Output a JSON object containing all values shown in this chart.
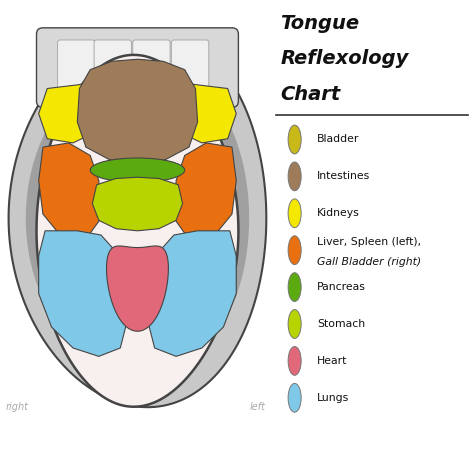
{
  "title_line1": "Tongue",
  "title_line2": "Reflexology",
  "title_line3": "Chart",
  "background_color": "#ffffff",
  "legend_items": [
    {
      "label": "Bladder",
      "color": "#c8b818"
    },
    {
      "label": "Intestines",
      "color": "#9e7c5a"
    },
    {
      "label": "Kidneys",
      "color": "#f5e800"
    },
    {
      "label": "Liver, Spleen (left),\nGall Bladder (right)",
      "color": "#e87010"
    },
    {
      "label": "Pancreas",
      "color": "#5aaa10"
    },
    {
      "label": "Stomach",
      "color": "#b8d400"
    },
    {
      "label": "Heart",
      "color": "#e06878"
    },
    {
      "label": "Lungs",
      "color": "#80c8e8"
    }
  ],
  "region_colors": {
    "bladder": "#c8b818",
    "intestines": "#9e7c5a",
    "kidneys": "#f5e800",
    "liver_spleen": "#e87010",
    "pancreas": "#5aaa10",
    "stomach": "#b8d400",
    "heart": "#e06878",
    "lungs": "#80c8e8"
  },
  "mouth_outer_color": "#c8c8c8",
  "mouth_inner_color": "#a0a0a0",
  "tongue_color": "#f8f0ee",
  "outline_color": "#444444",
  "teeth_color": "#f0f0f0",
  "teeth_bg_color": "#d8d8d8"
}
